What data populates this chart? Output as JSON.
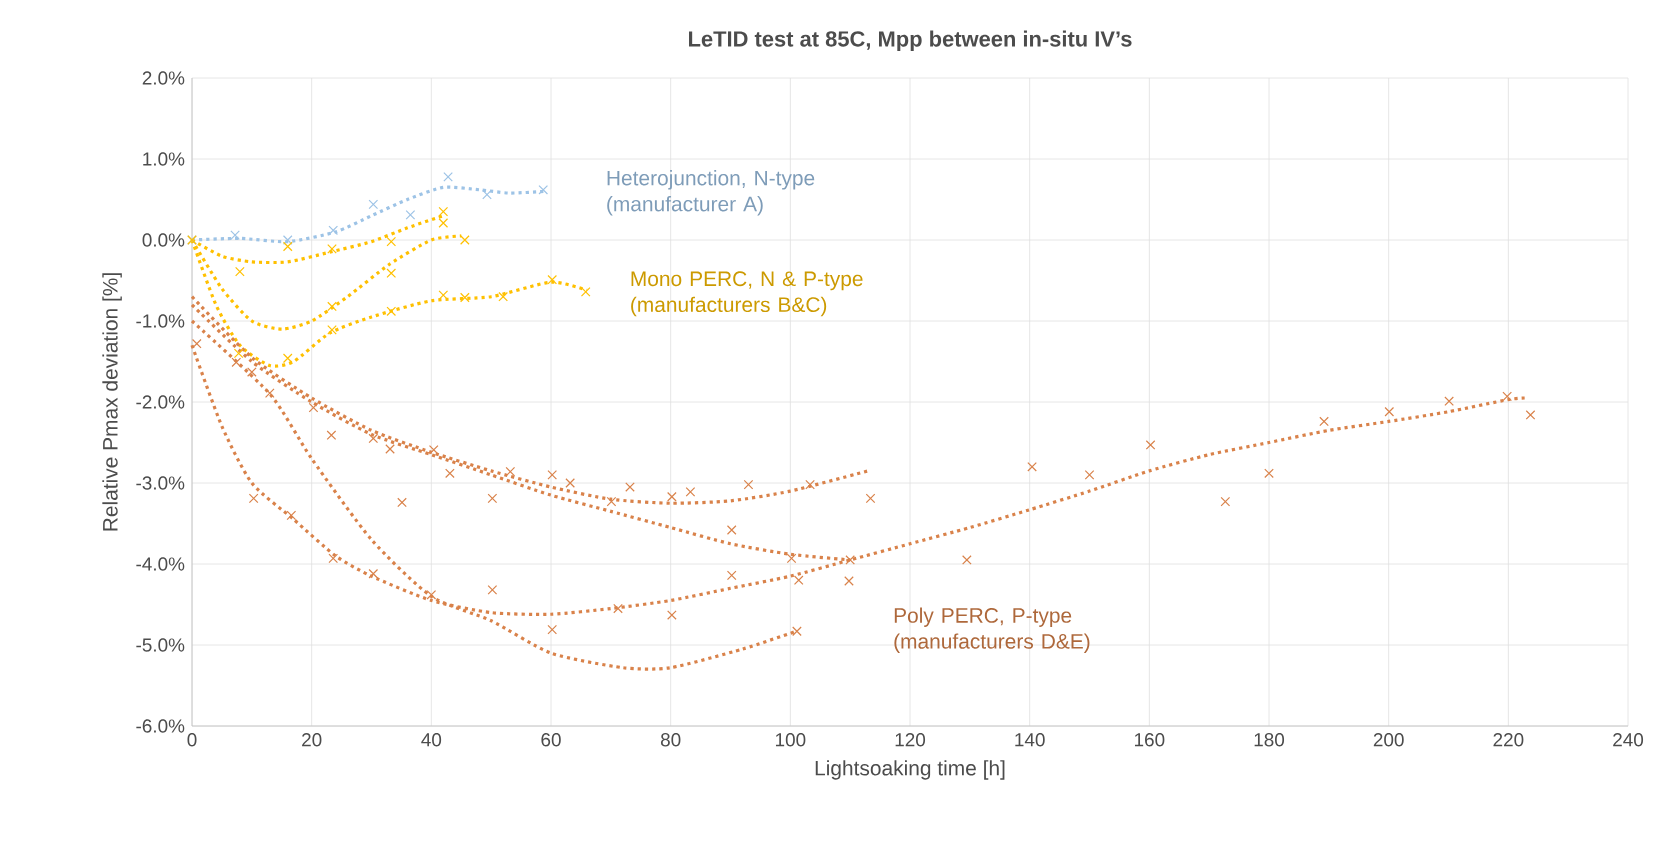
{
  "chart_data": {
    "type": "scatter",
    "title": "LeTID test at 85C, Mpp between in-situ IV’s",
    "xlabel": "Lightsoaking time [h]",
    "ylabel": "Relative Pmax deviation [%]",
    "xlim": [
      0,
      240
    ],
    "xticks": [
      0,
      20,
      40,
      60,
      80,
      100,
      120,
      140,
      160,
      180,
      200,
      220,
      240
    ],
    "ylim": [
      -6,
      2
    ],
    "yticks": [
      {
        "value": 2,
        "label": "2.0%"
      },
      {
        "value": 1,
        "label": "1.0%"
      },
      {
        "value": 0,
        "label": "0.0%"
      },
      {
        "value": -1,
        "label": "-1.0%"
      },
      {
        "value": -2,
        "label": "-2.0%"
      },
      {
        "value": -3,
        "label": "-3.0%"
      },
      {
        "value": -4,
        "label": "-4.0%"
      },
      {
        "value": -5,
        "label": "-5.0%"
      },
      {
        "value": -6,
        "label": "-6.0%"
      }
    ],
    "grid": true,
    "marker": "cross",
    "series": [
      {
        "type": "line",
        "marker": "none",
        "line_style": "dotted",
        "color": "#9dc3e6",
        "x": [
          0,
          8,
          16,
          24,
          30,
          36,
          42,
          48,
          53,
          59
        ],
        "values": [
          0,
          0.02,
          -0.02,
          0.1,
          0.3,
          0.5,
          0.65,
          0.62,
          0.58,
          0.6
        ]
      },
      {
        "type": "line",
        "marker": "none",
        "line_style": "dotted",
        "color": "#ffc000",
        "x": [
          0,
          5,
          10,
          16,
          23,
          30,
          36,
          42
        ],
        "values": [
          0,
          -0.2,
          -0.27,
          -0.27,
          -0.15,
          -0.02,
          0.15,
          0.3
        ]
      },
      {
        "type": "line",
        "marker": "none",
        "line_style": "dotted",
        "color": "#ffc000",
        "x": [
          0,
          5,
          10,
          15,
          20,
          26,
          33,
          40,
          45
        ],
        "values": [
          0,
          -0.6,
          -1.0,
          -1.1,
          -1.0,
          -0.7,
          -0.3,
          0.0,
          0.05
        ]
      },
      {
        "type": "line",
        "marker": "none",
        "line_style": "dotted",
        "color": "#ffc000",
        "x": [
          0,
          4,
          8,
          13,
          17,
          23,
          30,
          40,
          50,
          60,
          66
        ],
        "values": [
          0,
          -0.8,
          -1.3,
          -1.55,
          -1.5,
          -1.15,
          -0.95,
          -0.75,
          -0.7,
          -0.52,
          -0.62
        ]
      },
      {
        "type": "line",
        "marker": "none",
        "line_style": "dotted",
        "color": "#d9824a",
        "x": [
          0,
          10,
          20,
          30,
          40,
          50,
          60,
          70,
          80,
          90,
          100,
          113
        ],
        "values": [
          -0.7,
          -1.45,
          -1.95,
          -2.35,
          -2.62,
          -2.85,
          -3.05,
          -3.2,
          -3.25,
          -3.22,
          -3.1,
          -2.85
        ]
      },
      {
        "type": "line",
        "marker": "none",
        "line_style": "dotted",
        "color": "#d9824a",
        "x": [
          0,
          10,
          20,
          30,
          40,
          50,
          60,
          70,
          80,
          90,
          100,
          110
        ],
        "values": [
          -0.8,
          -1.5,
          -2.0,
          -2.4,
          -2.65,
          -2.9,
          -3.15,
          -3.35,
          -3.55,
          -3.75,
          -3.88,
          -3.95
        ]
      },
      {
        "type": "line",
        "marker": "none",
        "line_style": "dotted",
        "color": "#d9824a",
        "x": [
          0,
          5,
          10,
          17,
          24,
          30,
          40,
          50,
          60,
          70,
          80,
          90,
          100,
          110,
          120,
          130,
          140,
          150,
          160,
          170,
          180,
          190,
          200,
          210,
          220,
          223
        ],
        "values": [
          -1.3,
          -2.3,
          -3.0,
          -3.45,
          -3.9,
          -4.15,
          -4.45,
          -4.6,
          -4.62,
          -4.55,
          -4.45,
          -4.3,
          -4.15,
          -3.95,
          -3.75,
          -3.55,
          -3.33,
          -3.1,
          -2.85,
          -2.65,
          -2.5,
          -2.35,
          -2.24,
          -2.12,
          -1.97,
          -1.95
        ]
      },
      {
        "type": "line",
        "marker": "none",
        "line_style": "dotted",
        "color": "#d9824a",
        "x": [
          0,
          13,
          20,
          30,
          40,
          50,
          60,
          72,
          80,
          92,
          101
        ],
        "values": [
          -1.0,
          -1.9,
          -2.7,
          -3.7,
          -4.4,
          -4.7,
          -5.1,
          -5.28,
          -5.28,
          -5.05,
          -4.83
        ]
      },
      {
        "name": "Heterojunction, N-type (manufacturer A)",
        "color": "#9dc3e6",
        "x": [
          0,
          7.2,
          16,
          23.6,
          30.3,
          36.5,
          42.8,
          49.3,
          58.7
        ],
        "values": [
          0,
          0.06,
          0,
          0.12,
          0.44,
          0.31,
          0.78,
          0.56,
          0.62
        ]
      },
      {
        "name": "Mono PERC, N & P-type (manufacturers B&C)",
        "color": "#ffc000",
        "x": [
          0,
          8,
          16,
          23.4,
          33.3,
          42,
          42,
          23.4,
          33.3,
          45.6,
          7.8,
          16,
          23.4,
          33.3,
          42,
          45.6,
          52,
          60.2,
          65.8
        ],
        "values": [
          0,
          -0.39,
          -0.08,
          -0.11,
          -0.02,
          0.35,
          0.21,
          -0.82,
          -0.41,
          0,
          -1.4,
          -1.46,
          -1.11,
          -0.88,
          -0.68,
          -0.71,
          -0.7,
          -0.49,
          -0.64
        ]
      },
      {
        "name": "Poly PERC, P-type (manufacturers D&E)",
        "color": "#d9824a",
        "x": [
          0.8,
          7.4,
          10,
          13,
          10.3,
          16.6,
          20.3,
          23.3,
          23.6,
          30.3,
          33.1,
          30.3,
          35.1,
          40.4,
          43.1,
          40,
          50.2,
          53.2,
          50.2,
          60.2,
          63.2,
          60.2,
          70.1,
          73.2,
          71.2,
          80.2,
          83.3,
          80.2,
          90.2,
          90.2,
          93,
          103.3,
          113.4,
          100.2,
          101.4,
          110,
          109.8,
          101.1,
          129.5,
          140.4,
          150,
          160.2,
          172.7,
          180,
          189.2,
          200.1,
          210.1,
          219.8,
          223.7
        ],
        "values": [
          -1.28,
          -1.51,
          -1.63,
          -1.89,
          -3.19,
          -3.4,
          -2.07,
          -2.41,
          -3.93,
          -2.45,
          -2.58,
          -4.12,
          -3.24,
          -2.59,
          -2.88,
          -4.38,
          -3.19,
          -2.86,
          -4.32,
          -2.9,
          -3.0,
          -4.81,
          -3.23,
          -3.05,
          -4.55,
          -3.17,
          -3.11,
          -4.63,
          -3.58,
          -4.14,
          -3.02,
          -3.02,
          -3.19,
          -3.93,
          -4.2,
          -3.95,
          -4.21,
          -4.83,
          -3.95,
          -2.8,
          -2.9,
          -2.53,
          -3.23,
          -2.88,
          -2.24,
          -2.12,
          -1.99,
          -1.93,
          -2.16
        ]
      }
    ]
  }
}
